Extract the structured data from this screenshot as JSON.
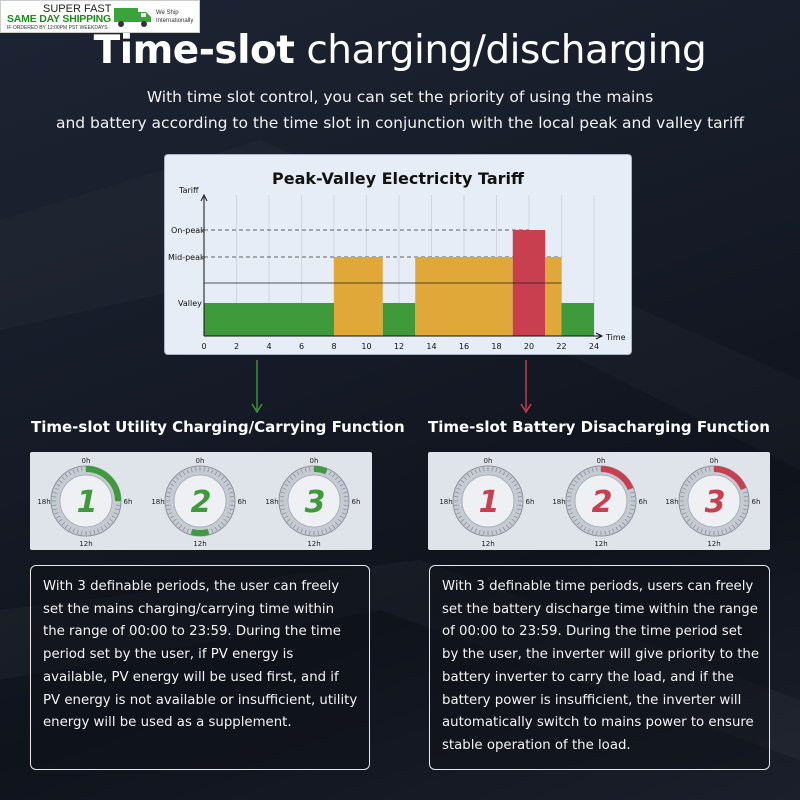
{
  "badge": {
    "line1": "SUPER FAST",
    "line2": "SAME DAY SHIPPING",
    "line3": "IF ORDERED BY 12:00PM PST WEEKDAYS",
    "line4": "We Ship Internationally",
    "icon": "truck-icon"
  },
  "header": {
    "title_bold": "Time-slot",
    "title_rest": " charging/discharging",
    "subtitle_line1": "With time slot control, you can set the priority of using the mains",
    "subtitle_line2": "and battery according to the time slot in conjunction with the local peak and valley tariff"
  },
  "chart_data": {
    "type": "bar",
    "title": "Peak-Valley Electricity Tariff",
    "ylabel": "Tariff",
    "xlabel": "Time",
    "x_ticks": [
      0,
      2,
      4,
      6,
      8,
      10,
      12,
      14,
      16,
      18,
      20,
      22,
      24
    ],
    "y_levels": [
      "Valley",
      "Mid-peak",
      "On-peak"
    ],
    "xlim": [
      0,
      24
    ],
    "segments": [
      {
        "start": 0,
        "end": 8,
        "level": "Valley",
        "color": "#3e9a3a"
      },
      {
        "start": 8,
        "end": 11,
        "level": "Mid-peak",
        "color": "#e0a838"
      },
      {
        "start": 11,
        "end": 13,
        "level": "Valley",
        "color": "#3e9a3a"
      },
      {
        "start": 13,
        "end": 19,
        "level": "Mid-peak",
        "color": "#e0a838"
      },
      {
        "start": 19,
        "end": 21,
        "level": "On-peak",
        "color": "#c8404f"
      },
      {
        "start": 21,
        "end": 22,
        "level": "Mid-peak",
        "color": "#e0a838"
      },
      {
        "start": 22,
        "end": 24,
        "level": "Valley",
        "color": "#3e9a3a"
      }
    ]
  },
  "colors": {
    "green": "#3e9a3a",
    "red": "#c8404f",
    "orange": "#e0a838"
  },
  "left_section": {
    "title": "Time-slot Utility Charging/Carrying Function",
    "dials": [
      {
        "number": "1",
        "color": "#3e9a3a",
        "arc_start_h": 0,
        "arc_end_h": 6
      },
      {
        "number": "2",
        "color": "#3e9a3a",
        "arc_start_h": 11,
        "arc_end_h": 13
      },
      {
        "number": "3",
        "color": "#3e9a3a",
        "arc_start_h": 0,
        "arc_end_h": 1.5
      }
    ],
    "text": "With 3 definable periods, the user can freely set the mains charging/carrying time within the range of 00:00 to 23:59. During the time period set by the user, if PV energy is available, PV energy will be used first, and if PV energy is not available or insufficient, utility energy will be used as a supplement."
  },
  "right_section": {
    "title": "Time-slot Battery Disacharging Function",
    "dials": [
      {
        "number": "1",
        "color": "#c8404f",
        "arc_start_h": 0,
        "arc_end_h": 0
      },
      {
        "number": "2",
        "color": "#c8404f",
        "arc_start_h": 0,
        "arc_end_h": 4.5
      },
      {
        "number": "3",
        "color": "#c8404f",
        "arc_start_h": 0,
        "arc_end_h": 4.5
      }
    ],
    "text": "With 3 definable time periods, users can freely set the battery discharge time within the range of 00:00 to 23:59. During the time period set by the user, the inverter will give priority to the battery inverter to carry the load, and if the battery power is insufficient, the inverter will automatically switch to mains power to ensure stable operation of the load."
  },
  "dial_labels": {
    "top": "0h",
    "right": "6h",
    "bottom": "12h",
    "left": "18h"
  }
}
